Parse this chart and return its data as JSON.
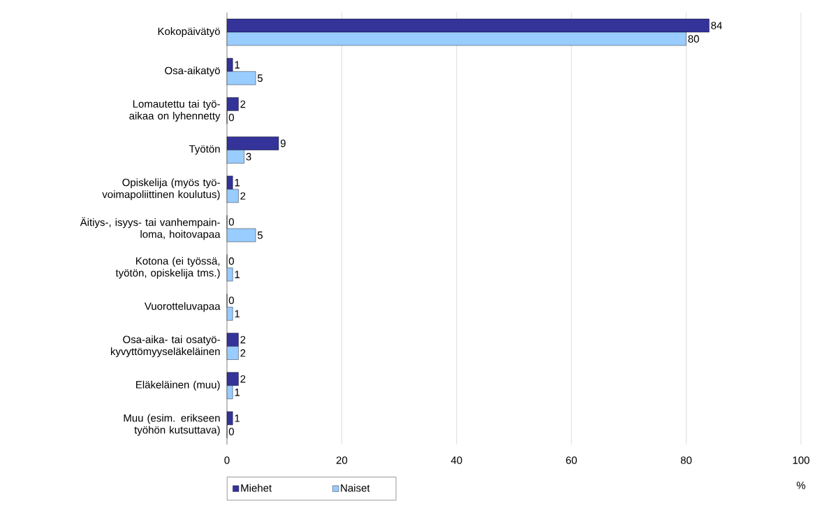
{
  "chart_data": {
    "type": "bar",
    "orientation": "horizontal",
    "xlabel": "%",
    "categories": [
      "Kokopäivätyö",
      "Osa-aikatyö",
      "Lomautettu tai työ-aikaa on lyhennetty",
      "Työtön",
      "Opiskelija (myös työ-voimapoliittinen koulutus)",
      "Äitiys-, isyys- tai vanhempain-loma, hoitovapaa",
      "Kotona (ei työssä, työtön, opiskelija tms.)",
      "Vuorotteluvapaa",
      "Osa-aika- tai osatyö-kyvyttömyyseläkeläinen",
      "Eläkeläinen (muu)",
      "Muu (esim. erikseen työhön kutsuttava)"
    ],
    "series": [
      {
        "name": "Miehet",
        "color": "#333399",
        "values": [
          84,
          1,
          2,
          9,
          1,
          0,
          0,
          0,
          2,
          2,
          1
        ]
      },
      {
        "name": "Naiset",
        "color": "#99ccff",
        "values": [
          80,
          5,
          0,
          3,
          2,
          5,
          1,
          1,
          2,
          1,
          0
        ]
      }
    ],
    "xlim": [
      0,
      100
    ],
    "xticks": [
      0,
      20,
      40,
      60,
      80,
      100
    ],
    "grid": "x",
    "legend": "bottom",
    "data_labels": true
  }
}
